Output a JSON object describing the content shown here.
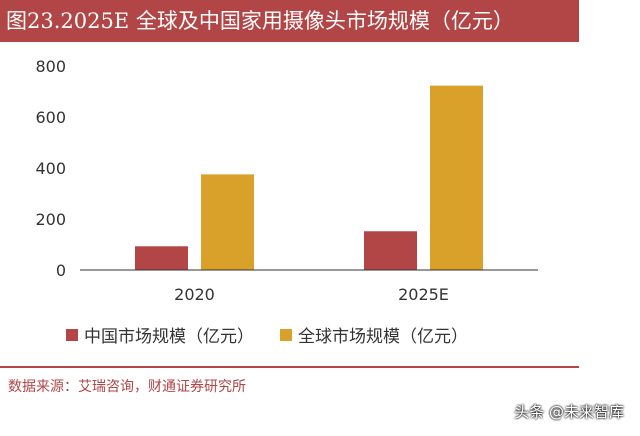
{
  "title": "图23.2025E 全球及中国家用摄像头市场规模（亿元）",
  "source": "数据来源：艾瑞咨询，财通证券研究所",
  "watermark": "头条 @未来智库",
  "colors": {
    "title_bg": "#b24545",
    "china": "#b24545",
    "global": "#d9a12a",
    "axis": "#333333"
  },
  "chart_data": {
    "type": "bar",
    "title": "图23.2025E 全球及中国家用摄像头市场规模（亿元）",
    "categories": [
      "2020",
      "2025E"
    ],
    "series": [
      {
        "name": "中国市场规模（亿元）",
        "values": [
          93,
          152
        ]
      },
      {
        "name": "全球市场规模（亿元）",
        "values": [
          375,
          723
        ]
      }
    ],
    "ylim": [
      0,
      800
    ],
    "yticks": [
      0,
      200,
      400,
      600,
      800
    ],
    "xlabel": "",
    "ylabel": "",
    "grid": false,
    "legend": "bottom"
  }
}
